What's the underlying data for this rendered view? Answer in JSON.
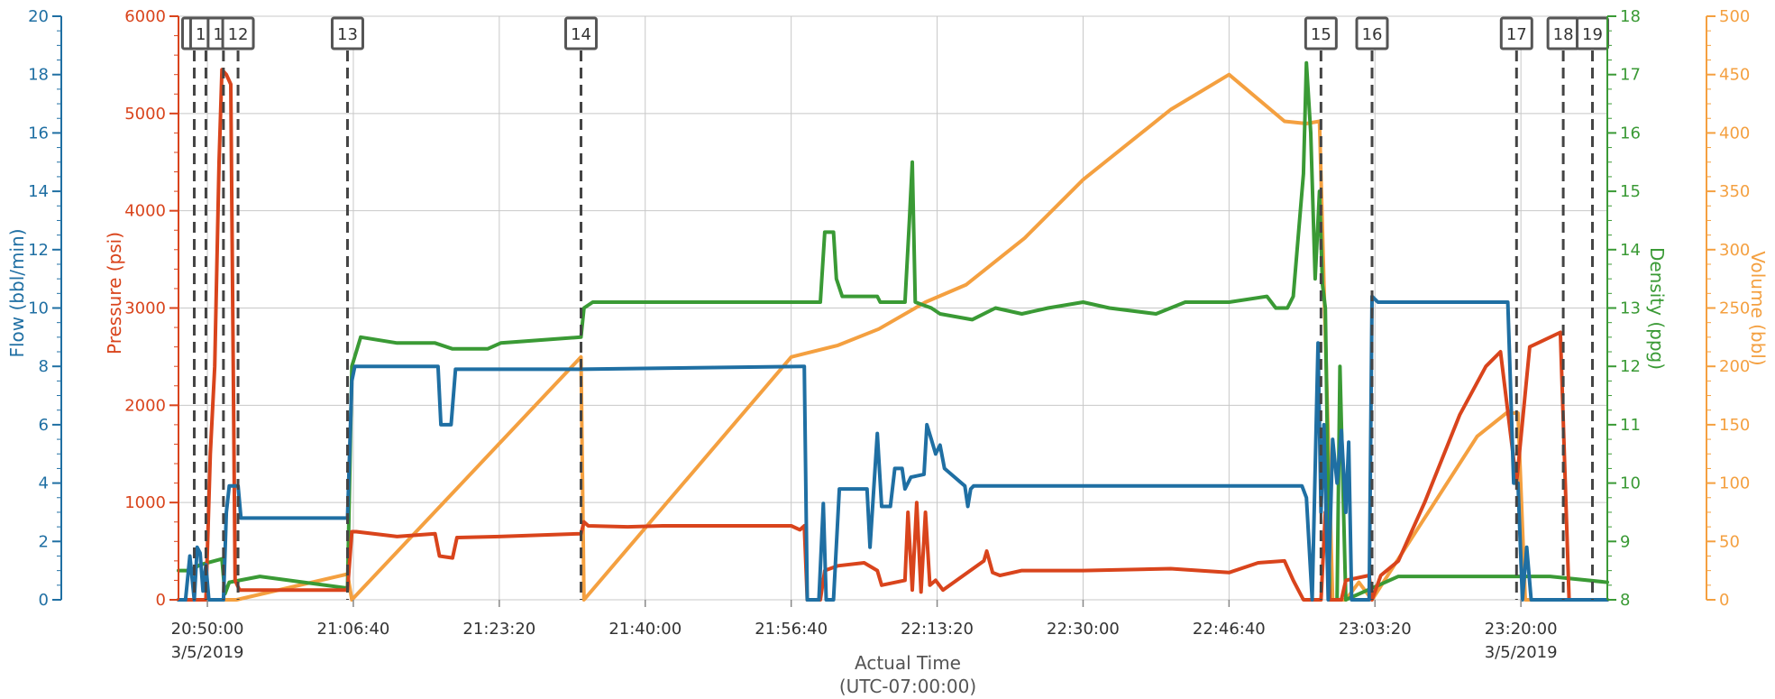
{
  "chart_data": {
    "type": "line",
    "title": "",
    "xlabel": "Actual Time",
    "xlabel_sub": "(UTC-07:00:00)",
    "x_ticks": [
      {
        "time": "20:50:00",
        "date": "3/5/2019"
      },
      {
        "time": "21:06:40",
        "date": ""
      },
      {
        "time": "21:23:20",
        "date": ""
      },
      {
        "time": "21:40:00",
        "date": ""
      },
      {
        "time": "21:56:40",
        "date": ""
      },
      {
        "time": "22:13:20",
        "date": ""
      },
      {
        "time": "22:30:00",
        "date": ""
      },
      {
        "time": "22:46:40",
        "date": ""
      },
      {
        "time": "23:03:20",
        "date": ""
      },
      {
        "time": "23:20:00",
        "date": "3/5/2019"
      }
    ],
    "xlim": [
      "20:46:42",
      "23:29:52"
    ],
    "grid": true,
    "axes": [
      {
        "id": "flow",
        "label": "Flow (bbl/min)",
        "color": "#1f6fa3",
        "ylim": [
          0,
          20
        ],
        "ticks": [
          "0",
          "2",
          "4",
          "6",
          "8",
          "10",
          "12",
          "14",
          "16",
          "18",
          "20"
        ]
      },
      {
        "id": "pressure",
        "label": "Pressure (psi)",
        "color": "#d9441c",
        "ylim": [
          0,
          6000
        ],
        "ticks": [
          "0",
          "1000",
          "2000",
          "3000",
          "4000",
          "5000",
          "6000"
        ]
      },
      {
        "id": "density",
        "label": "Density (ppg)",
        "color": "#3a9a35",
        "ylim": [
          8,
          18
        ],
        "ticks": [
          "8",
          "9",
          "10",
          "11",
          "12",
          "13",
          "14",
          "15",
          "16",
          "17",
          "18"
        ]
      },
      {
        "id": "volume",
        "label": "Volume (bbl)",
        "color": "#f4a040",
        "ylim": [
          0,
          500
        ],
        "ticks": [
          "0",
          "50",
          "100",
          "150",
          "200",
          "250",
          "300",
          "350",
          "400",
          "450",
          "500"
        ]
      }
    ],
    "stage_markers": [
      {
        "label": "9",
        "time": "20:48:30"
      },
      {
        "label": "10",
        "time": "20:49:50"
      },
      {
        "label": "11",
        "time": "20:51:50"
      },
      {
        "label": "12",
        "time": "20:53:30"
      },
      {
        "label": "13",
        "time": "21:06:00"
      },
      {
        "label": "14",
        "time": "21:32:40"
      },
      {
        "label": "15",
        "time": "22:57:10"
      },
      {
        "label": "16",
        "time": "23:03:00"
      },
      {
        "label": "17",
        "time": "23:19:30"
      },
      {
        "label": "18",
        "time": "23:24:50"
      },
      {
        "label": "19",
        "time": "23:28:10"
      }
    ],
    "series": [
      {
        "axis": "flow",
        "points": [
          [
            "20:46:42",
            0
          ],
          [
            "20:47:30",
            0
          ],
          [
            "20:48:00",
            1.5
          ],
          [
            "20:48:30",
            0
          ],
          [
            "20:48:50",
            1.8
          ],
          [
            "20:49:10",
            1.6
          ],
          [
            "20:49:30",
            0.3
          ],
          [
            "20:49:50",
            1.2
          ],
          [
            "20:50:10",
            0
          ],
          [
            "20:51:50",
            0
          ],
          [
            "20:52:10",
            3
          ],
          [
            "20:52:30",
            3.9
          ],
          [
            "20:53:30",
            3.9
          ],
          [
            "20:53:50",
            2.8
          ],
          [
            "21:06:00",
            2.8
          ],
          [
            "21:06:30",
            7.5
          ],
          [
            "21:06:50",
            8
          ],
          [
            "21:16:20",
            8
          ],
          [
            "21:16:40",
            6
          ],
          [
            "21:17:50",
            6
          ],
          [
            "21:18:20",
            7.9
          ],
          [
            "21:32:40",
            7.9
          ],
          [
            "21:58:10",
            8
          ],
          [
            "21:58:30",
            0
          ],
          [
            "21:59:50",
            0
          ],
          [
            "22:00:20",
            3.3
          ],
          [
            "22:00:40",
            0
          ],
          [
            "22:01:30",
            0
          ],
          [
            "22:02:10",
            3.8
          ],
          [
            "22:05:20",
            3.8
          ],
          [
            "22:05:40",
            1.8
          ],
          [
            "22:06:30",
            5.7
          ],
          [
            "22:07:00",
            3.2
          ],
          [
            "22:08:00",
            3.2
          ],
          [
            "22:08:30",
            4.5
          ],
          [
            "22:09:20",
            4.5
          ],
          [
            "22:09:40",
            3.8
          ],
          [
            "22:10:20",
            4.2
          ],
          [
            "22:11:50",
            4.3
          ],
          [
            "22:12:10",
            6
          ],
          [
            "22:12:40",
            5.5
          ],
          [
            "22:13:10",
            5
          ],
          [
            "22:13:40",
            5.3
          ],
          [
            "22:14:10",
            4.5
          ],
          [
            "22:16:30",
            3.9
          ],
          [
            "22:16:50",
            3.2
          ],
          [
            "22:17:10",
            3.8
          ],
          [
            "22:17:30",
            3.9
          ],
          [
            "22:55:00",
            3.9
          ],
          [
            "22:55:30",
            3.5
          ],
          [
            "22:56:10",
            0
          ],
          [
            "22:56:50",
            8.8
          ],
          [
            "22:57:10",
            3
          ],
          [
            "22:57:30",
            6
          ],
          [
            "22:58:00",
            0
          ],
          [
            "22:58:30",
            5.5
          ],
          [
            "22:59:00",
            4
          ],
          [
            "22:59:30",
            5.8
          ],
          [
            "23:00:00",
            3
          ],
          [
            "23:00:20",
            5.4
          ],
          [
            "23:00:40",
            0
          ],
          [
            "23:02:40",
            0
          ],
          [
            "23:03:00",
            10.4
          ],
          [
            "23:03:40",
            10.2
          ],
          [
            "23:18:30",
            10.2
          ],
          [
            "23:19:10",
            4
          ],
          [
            "23:19:40",
            4
          ],
          [
            "23:20:10",
            0
          ],
          [
            "23:20:40",
            1.8
          ],
          [
            "23:21:10",
            0
          ],
          [
            "23:29:52",
            0
          ]
        ]
      },
      {
        "axis": "pressure",
        "points": [
          [
            "20:46:42",
            0
          ],
          [
            "20:49:50",
            0
          ],
          [
            "20:50:20",
            1500
          ],
          [
            "20:50:50",
            2400
          ],
          [
            "20:51:20",
            4500
          ],
          [
            "20:51:40",
            5450
          ],
          [
            "20:52:10",
            5400
          ],
          [
            "20:52:40",
            5300
          ],
          [
            "20:53:10",
            200
          ],
          [
            "20:53:40",
            100
          ],
          [
            "21:06:00",
            100
          ],
          [
            "21:06:30",
            700
          ],
          [
            "21:07:00",
            700
          ],
          [
            "21:11:40",
            650
          ],
          [
            "21:16:00",
            680
          ],
          [
            "21:16:30",
            450
          ],
          [
            "21:18:00",
            430
          ],
          [
            "21:18:30",
            640
          ],
          [
            "21:23:20",
            650
          ],
          [
            "21:32:40",
            680
          ],
          [
            "21:33:00",
            800
          ],
          [
            "21:33:30",
            760
          ],
          [
            "21:38:00",
            750
          ],
          [
            "21:42:00",
            760
          ],
          [
            "21:50:00",
            760
          ],
          [
            "21:56:40",
            760
          ],
          [
            "21:57:40",
            720
          ],
          [
            "21:58:10",
            760
          ],
          [
            "21:58:30",
            0
          ],
          [
            "22:00:00",
            0
          ],
          [
            "22:00:30",
            300
          ],
          [
            "22:02:00",
            350
          ],
          [
            "22:05:00",
            380
          ],
          [
            "22:06:30",
            300
          ],
          [
            "22:07:00",
            150
          ],
          [
            "22:09:40",
            200
          ],
          [
            "22:10:00",
            900
          ],
          [
            "22:10:30",
            100
          ],
          [
            "22:11:00",
            1000
          ],
          [
            "22:11:30",
            80
          ],
          [
            "22:12:00",
            900
          ],
          [
            "22:12:30",
            150
          ],
          [
            "22:13:10",
            200
          ],
          [
            "22:14:00",
            100
          ],
          [
            "22:18:40",
            400
          ],
          [
            "22:19:00",
            500
          ],
          [
            "22:19:40",
            280
          ],
          [
            "22:20:30",
            250
          ],
          [
            "22:23:00",
            300
          ],
          [
            "22:30:00",
            300
          ],
          [
            "22:40:00",
            320
          ],
          [
            "22:46:40",
            280
          ],
          [
            "22:50:00",
            380
          ],
          [
            "22:53:00",
            400
          ],
          [
            "22:54:00",
            200
          ],
          [
            "22:55:10",
            0
          ],
          [
            "22:57:10",
            0
          ],
          [
            "22:57:40",
            900
          ],
          [
            "22:58:10",
            0
          ],
          [
            "22:59:30",
            0
          ],
          [
            "23:00:00",
            200
          ],
          [
            "23:02:40",
            250
          ],
          [
            "23:03:00",
            0
          ],
          [
            "23:04:00",
            250
          ],
          [
            "23:06:00",
            400
          ],
          [
            "23:09:00",
            1000
          ],
          [
            "23:13:00",
            1900
          ],
          [
            "23:16:00",
            2400
          ],
          [
            "23:17:40",
            2550
          ],
          [
            "23:19:30",
            1200
          ],
          [
            "23:21:00",
            2600
          ],
          [
            "23:24:30",
            2750
          ],
          [
            "23:25:30",
            0
          ],
          [
            "23:29:52",
            0
          ]
        ]
      },
      {
        "axis": "density",
        "points": [
          [
            "20:46:42",
            8.5
          ],
          [
            "20:48:00",
            8.5
          ],
          [
            "20:49:10",
            8.6
          ],
          [
            "20:51:40",
            8.7
          ],
          [
            "20:52:00",
            8.1
          ],
          [
            "20:52:30",
            8.3
          ],
          [
            "20:56:00",
            8.4
          ],
          [
            "21:06:00",
            8.2
          ],
          [
            "21:06:30",
            12
          ],
          [
            "21:07:30",
            12.5
          ],
          [
            "21:11:40",
            12.4
          ],
          [
            "21:16:00",
            12.4
          ],
          [
            "21:18:00",
            12.3
          ],
          [
            "21:22:00",
            12.3
          ],
          [
            "21:23:30",
            12.4
          ],
          [
            "21:32:40",
            12.5
          ],
          [
            "21:33:00",
            13
          ],
          [
            "21:34:00",
            13.1
          ],
          [
            "21:50:00",
            13.1
          ],
          [
            "22:00:00",
            13.1
          ],
          [
            "22:00:30",
            14.3
          ],
          [
            "22:01:30",
            14.3
          ],
          [
            "22:01:50",
            13.5
          ],
          [
            "22:02:30",
            13.2
          ],
          [
            "22:06:30",
            13.2
          ],
          [
            "22:06:50",
            13.1
          ],
          [
            "22:09:40",
            13.1
          ],
          [
            "22:10:10",
            14.5
          ],
          [
            "22:10:30",
            15.5
          ],
          [
            "22:10:50",
            13.1
          ],
          [
            "22:12:40",
            13
          ],
          [
            "22:13:40",
            12.9
          ],
          [
            "22:17:20",
            12.8
          ],
          [
            "22:20:00",
            13
          ],
          [
            "22:23:00",
            12.9
          ],
          [
            "22:26:00",
            13
          ],
          [
            "22:30:00",
            13.1
          ],
          [
            "22:33:00",
            13
          ],
          [
            "22:38:20",
            12.9
          ],
          [
            "22:41:40",
            13.1
          ],
          [
            "22:46:40",
            13.1
          ],
          [
            "22:51:00",
            13.2
          ],
          [
            "22:52:00",
            13
          ],
          [
            "22:53:20",
            13
          ],
          [
            "22:54:00",
            13.2
          ],
          [
            "22:55:10",
            15.3
          ],
          [
            "22:55:30",
            17.2
          ],
          [
            "22:56:00",
            16
          ],
          [
            "22:56:30",
            13.5
          ],
          [
            "22:57:00",
            15
          ],
          [
            "22:57:20",
            13.4
          ],
          [
            "22:57:40",
            13
          ],
          [
            "22:58:10",
            8
          ],
          [
            "22:59:00",
            8
          ],
          [
            "22:59:20",
            12
          ],
          [
            "23:00:00",
            8
          ],
          [
            "23:03:00",
            8.2
          ],
          [
            "23:06:00",
            8.4
          ],
          [
            "23:13:20",
            8.4
          ],
          [
            "23:18:20",
            8.4
          ],
          [
            "23:23:20",
            8.4
          ],
          [
            "23:29:52",
            8.3
          ]
        ]
      },
      {
        "axis": "volume",
        "points": [
          [
            "20:46:42",
            0
          ],
          [
            "20:50:00",
            0
          ],
          [
            "20:53:20",
            0
          ],
          [
            "21:06:00",
            22
          ],
          [
            "21:06:30",
            0
          ],
          [
            "21:32:40",
            208
          ],
          [
            "21:33:00",
            0
          ],
          [
            "21:56:40",
            208
          ],
          [
            "22:02:00",
            218
          ],
          [
            "22:06:40",
            232
          ],
          [
            "22:12:00",
            255
          ],
          [
            "22:16:40",
            270
          ],
          [
            "22:23:20",
            310
          ],
          [
            "22:30:00",
            360
          ],
          [
            "22:40:00",
            420
          ],
          [
            "22:46:40",
            450
          ],
          [
            "22:53:00",
            410
          ],
          [
            "22:55:30",
            408
          ],
          [
            "22:57:00",
            410
          ],
          [
            "22:58:30",
            0
          ],
          [
            "23:00:00",
            0
          ],
          [
            "23:01:30",
            15
          ],
          [
            "23:03:00",
            0
          ],
          [
            "23:15:00",
            140
          ],
          [
            "23:18:20",
            160
          ],
          [
            "23:19:40",
            160
          ],
          [
            "23:20:30",
            0
          ],
          [
            "23:29:52",
            0
          ]
        ]
      }
    ]
  }
}
